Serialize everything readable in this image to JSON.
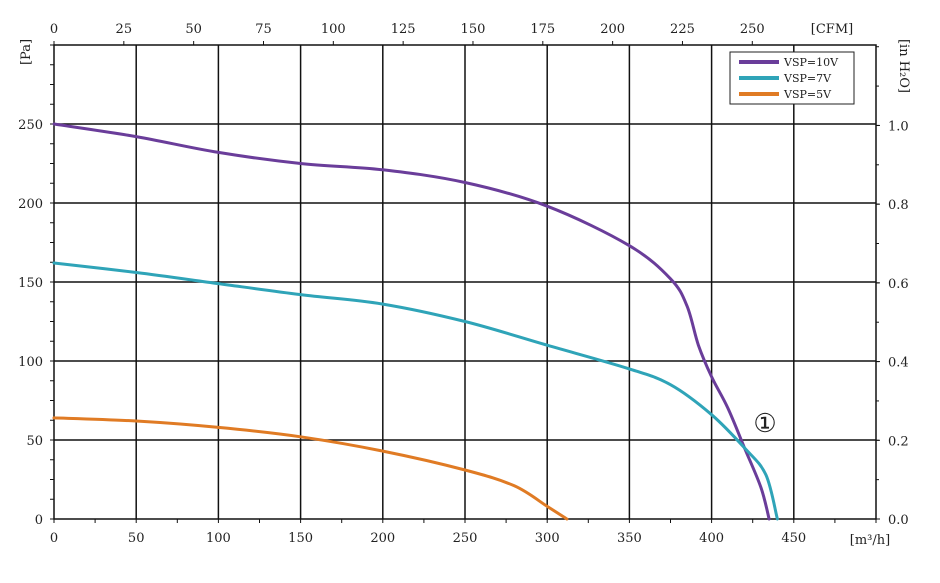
{
  "chart_data": {
    "type": "line",
    "x_label": "[m³/h]",
    "y_label": "[Pa]",
    "top_label": "[CFM]",
    "right_label": "[in H₂O]",
    "annotation": "①",
    "xlim": [
      0,
      500
    ],
    "ylim": [
      0,
      300
    ],
    "x_ticks": [
      0,
      50,
      100,
      150,
      200,
      250,
      300,
      350,
      400,
      450
    ],
    "y_ticks": [
      0,
      50,
      100,
      150,
      200,
      250
    ],
    "top_ticks": [
      "0",
      "25",
      "50",
      "75",
      "100",
      "125",
      "150",
      "175",
      "200",
      "225",
      "250"
    ],
    "right_ticks": [
      "0.0",
      "0.2",
      "0.4",
      "0.6",
      "0.8",
      "1.0"
    ],
    "grid": true,
    "legend_position": "top-right",
    "colors": {
      "vsp10": "#6a3d9a",
      "vsp7": "#2fa4b8",
      "vsp5": "#e07b24",
      "grid": "#111111"
    },
    "series": [
      {
        "name": "VSP=10V",
        "color": "#6a3d9a",
        "points": [
          [
            0,
            250
          ],
          [
            50,
            242
          ],
          [
            100,
            232
          ],
          [
            150,
            225
          ],
          [
            200,
            221
          ],
          [
            250,
            213
          ],
          [
            300,
            198
          ],
          [
            350,
            173
          ],
          [
            375,
            152
          ],
          [
            385,
            135
          ],
          [
            392,
            110
          ],
          [
            400,
            90
          ],
          [
            410,
            70
          ],
          [
            420,
            45
          ],
          [
            430,
            20
          ],
          [
            435,
            0
          ]
        ]
      },
      {
        "name": "VSP=7V",
        "color": "#2fa4b8",
        "points": [
          [
            0,
            162
          ],
          [
            50,
            156
          ],
          [
            100,
            149
          ],
          [
            150,
            142
          ],
          [
            200,
            136
          ],
          [
            250,
            125
          ],
          [
            300,
            110
          ],
          [
            350,
            95
          ],
          [
            375,
            85
          ],
          [
            400,
            66
          ],
          [
            420,
            45
          ],
          [
            433,
            28
          ],
          [
            440,
            0
          ]
        ]
      },
      {
        "name": "VSP=5V",
        "color": "#e07b24",
        "points": [
          [
            0,
            64
          ],
          [
            50,
            62
          ],
          [
            100,
            58
          ],
          [
            150,
            52
          ],
          [
            200,
            43
          ],
          [
            250,
            31
          ],
          [
            280,
            21
          ],
          [
            300,
            8
          ],
          [
            312,
            0
          ]
        ]
      }
    ]
  }
}
